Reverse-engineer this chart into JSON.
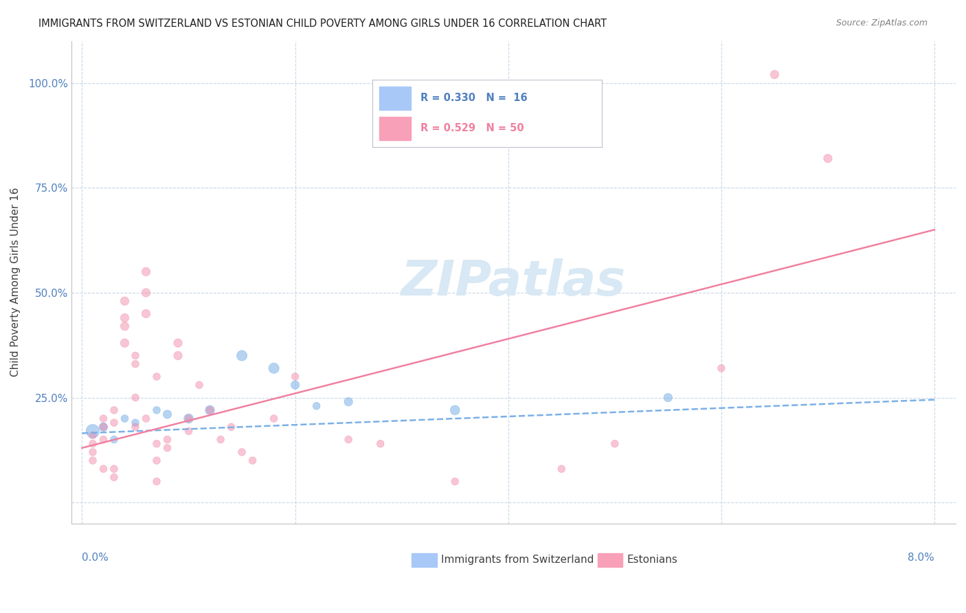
{
  "title": "IMMIGRANTS FROM SWITZERLAND VS ESTONIAN CHILD POVERTY AMONG GIRLS UNDER 16 CORRELATION CHART",
  "source": "Source: ZipAtlas.com",
  "ylabel": "Child Poverty Among Girls Under 16",
  "legend_label1": "Immigrants from Switzerland",
  "legend_label2": "Estonians",
  "blue_color": "#7ab0e8",
  "pink_color": "#f080a0",
  "blue_light": "#a8c8f8",
  "pink_light": "#f8a0b8",
  "watermark_color": "#d8e8f4",
  "title_color": "#202020",
  "axis_color": "#5080c0",
  "grid_color": "#c8d8e8",
  "swiss_points": [
    [
      0.001,
      0.17
    ],
    [
      0.002,
      0.18
    ],
    [
      0.003,
      0.15
    ],
    [
      0.004,
      0.2
    ],
    [
      0.005,
      0.19
    ],
    [
      0.007,
      0.22
    ],
    [
      0.008,
      0.21
    ],
    [
      0.01,
      0.2
    ],
    [
      0.012,
      0.22
    ],
    [
      0.015,
      0.35
    ],
    [
      0.018,
      0.32
    ],
    [
      0.02,
      0.28
    ],
    [
      0.022,
      0.23
    ],
    [
      0.025,
      0.24
    ],
    [
      0.035,
      0.22
    ],
    [
      0.055,
      0.25
    ]
  ],
  "swiss_sizes": [
    200,
    80,
    60,
    60,
    60,
    60,
    80,
    100,
    100,
    120,
    120,
    80,
    60,
    80,
    100,
    80
  ],
  "estonian_points": [
    [
      0.001,
      0.16
    ],
    [
      0.001,
      0.14
    ],
    [
      0.001,
      0.12
    ],
    [
      0.001,
      0.1
    ],
    [
      0.002,
      0.2
    ],
    [
      0.002,
      0.18
    ],
    [
      0.002,
      0.15
    ],
    [
      0.002,
      0.08
    ],
    [
      0.003,
      0.22
    ],
    [
      0.003,
      0.19
    ],
    [
      0.003,
      0.08
    ],
    [
      0.003,
      0.06
    ],
    [
      0.004,
      0.38
    ],
    [
      0.004,
      0.44
    ],
    [
      0.004,
      0.48
    ],
    [
      0.004,
      0.42
    ],
    [
      0.005,
      0.35
    ],
    [
      0.005,
      0.33
    ],
    [
      0.005,
      0.25
    ],
    [
      0.005,
      0.18
    ],
    [
      0.006,
      0.55
    ],
    [
      0.006,
      0.5
    ],
    [
      0.006,
      0.45
    ],
    [
      0.006,
      0.2
    ],
    [
      0.007,
      0.3
    ],
    [
      0.007,
      0.14
    ],
    [
      0.007,
      0.1
    ],
    [
      0.007,
      0.05
    ],
    [
      0.008,
      0.15
    ],
    [
      0.008,
      0.13
    ],
    [
      0.009,
      0.38
    ],
    [
      0.009,
      0.35
    ],
    [
      0.01,
      0.2
    ],
    [
      0.01,
      0.17
    ],
    [
      0.011,
      0.28
    ],
    [
      0.012,
      0.22
    ],
    [
      0.013,
      0.15
    ],
    [
      0.014,
      0.18
    ],
    [
      0.015,
      0.12
    ],
    [
      0.016,
      0.1
    ],
    [
      0.018,
      0.2
    ],
    [
      0.02,
      0.3
    ],
    [
      0.025,
      0.15
    ],
    [
      0.028,
      0.14
    ],
    [
      0.035,
      0.05
    ],
    [
      0.045,
      0.08
    ],
    [
      0.05,
      0.14
    ],
    [
      0.06,
      0.32
    ],
    [
      0.065,
      1.02
    ],
    [
      0.07,
      0.82
    ]
  ],
  "estonian_sizes": [
    60,
    60,
    60,
    60,
    60,
    60,
    60,
    60,
    60,
    60,
    60,
    60,
    80,
    80,
    80,
    80,
    60,
    60,
    60,
    60,
    80,
    80,
    80,
    60,
    60,
    60,
    60,
    60,
    60,
    60,
    80,
    80,
    60,
    60,
    60,
    60,
    60,
    60,
    60,
    60,
    60,
    60,
    60,
    60,
    60,
    60,
    60,
    60,
    80,
    80
  ],
  "swiss_line": [
    0.0,
    0.08,
    0.165,
    0.245
  ],
  "est_line": [
    0.0,
    0.08,
    0.13,
    0.65
  ],
  "xlim": [
    -0.001,
    0.082
  ],
  "ylim": [
    -0.05,
    1.1
  ],
  "ytick_positions": [
    0.0,
    0.25,
    0.5,
    0.75,
    1.0
  ],
  "ytick_labels": [
    "",
    "25.0%",
    "50.0%",
    "75.0%",
    "100.0%"
  ],
  "xtick_positions": [
    0.0,
    0.02,
    0.04,
    0.06,
    0.08
  ]
}
